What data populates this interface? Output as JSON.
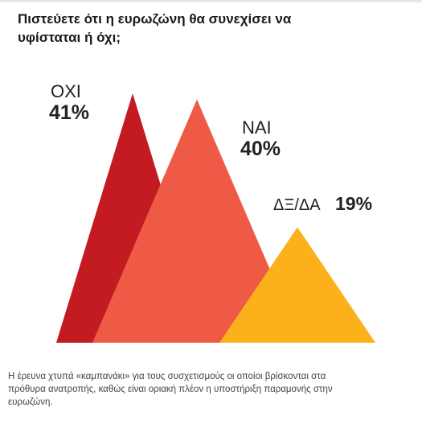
{
  "title": {
    "line1": "Πιστεύετε ότι η ευρωζώνη θα συνεχίσει να",
    "line2": "υφίσταται ή όχι;"
  },
  "chart_data": {
    "type": "triangle-area",
    "categories": [
      "ΟΧΙ",
      "ΝΑΙ",
      "ΔΞ/ΔΑ"
    ],
    "values": [
      41,
      40,
      19
    ],
    "value_labels": [
      "41%",
      "40%",
      "19%"
    ],
    "unit": "%",
    "colors": [
      "#c41b23",
      "#ef5a46",
      "#fcb11b"
    ],
    "title": "Πιστεύετε ότι η ευρωζώνη θα συνεχίσει να υφίσταται ή όχι;"
  },
  "caption": {
    "line1": "Η έρευνα χτυπά «καμπανάκι» για τους συσχετισμούς οι οποίοι βρίσκονται στα",
    "line2": "πρόθυρα ανατροπής, καθώς είναι οριακή πλέον η υποστήριξη παραμονής στην",
    "line3": "ευρωζώνη."
  }
}
